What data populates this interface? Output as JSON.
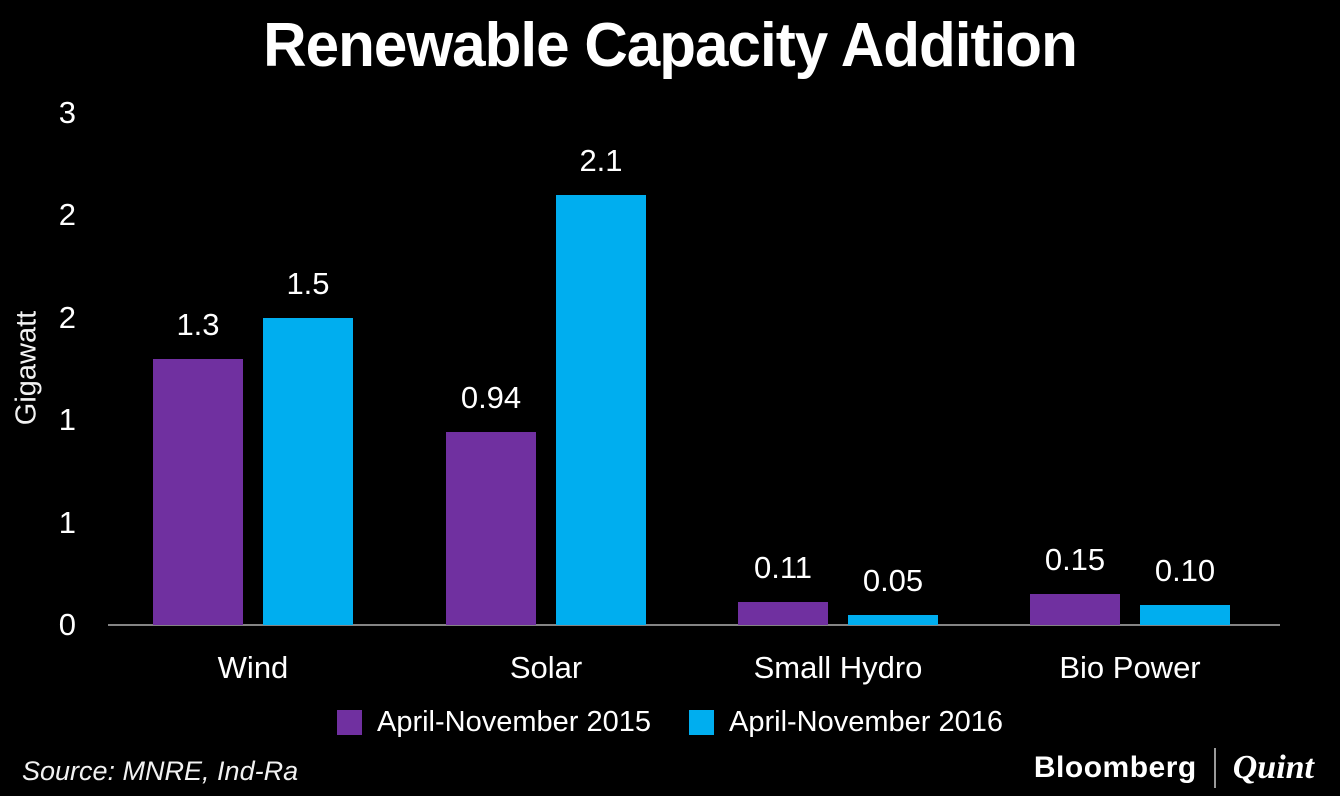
{
  "chart_data": {
    "type": "bar",
    "title": "Renewable Capacity Addition",
    "ylabel": "Gigawatt",
    "xlabel": "",
    "categories": [
      "Wind",
      "Solar",
      "Small Hydro",
      "Bio Power"
    ],
    "series": [
      {
        "name": "April-November 2015",
        "color": "#7030A0",
        "values": [
          1.3,
          0.94,
          0.11,
          0.15
        ],
        "labels": [
          "1.3",
          "0.94",
          "0.11",
          "0.15"
        ]
      },
      {
        "name": "April-November 2016",
        "color": "#00AEEF",
        "values": [
          1.5,
          2.1,
          0.05,
          0.1
        ],
        "labels": [
          "1.5",
          "2.1",
          "0.05",
          "0.10"
        ]
      }
    ],
    "ylim": [
      0,
      2.5
    ],
    "y_tick_labels_bottom_to_top": [
      "0",
      "1",
      "1",
      "2",
      "2",
      "3"
    ],
    "grid": false,
    "legend_position": "bottom",
    "background_color": "#000000",
    "axis_line_color": "#848484"
  },
  "footer": {
    "source": "Source: MNRE, Ind-Ra",
    "brand_primary": "Bloomberg",
    "brand_secondary": "Quint"
  }
}
